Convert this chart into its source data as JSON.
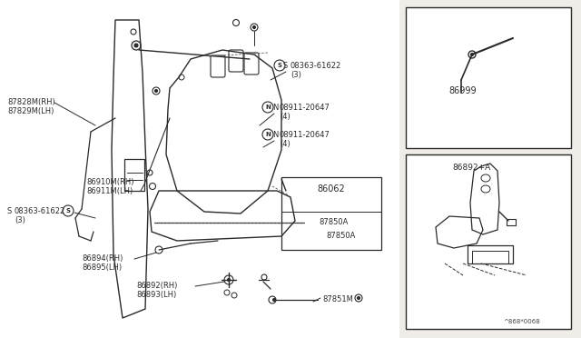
{
  "bg_color": "#f0ede8",
  "line_color": "#2a2a2a",
  "white": "#ffffff",
  "labels": {
    "87828M_RH": "87828M(RH)",
    "87829M_LH": "87829M(LH)",
    "08363_top": "08363-61622\n(3)",
    "08363_left": "08363-61622\n(3)",
    "08911_top": "08911-20647\n(4)",
    "08911_mid": "08911-20647\n(4)",
    "86910M_RH": "86910M(RH)",
    "86911M_LH": "86911M(LH)",
    "86894_RH": "86894(RH)",
    "86895_LH": "86895(LH)",
    "86892_RH": "86892(RH)",
    "86893_LH": "86893(LH)",
    "87851M": "87851M",
    "86062": "86062",
    "87850A_1": "87850A",
    "87850A_2": "87850A",
    "86999": "86999",
    "86892_A": "86892+A",
    "diagram_ref": "^868*0068"
  }
}
